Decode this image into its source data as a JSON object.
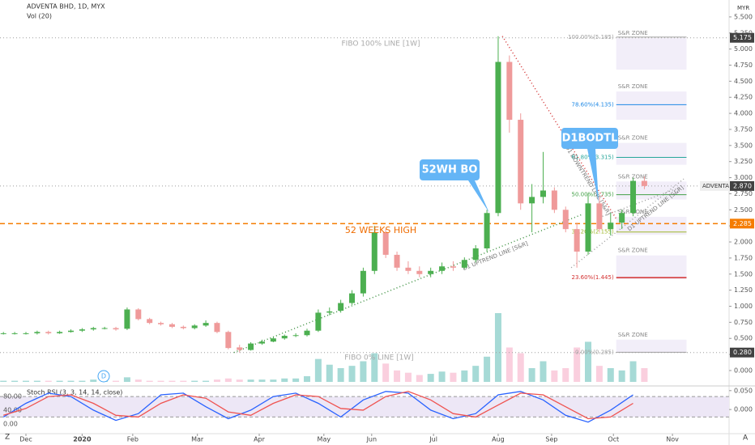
{
  "header": {
    "symbol": "ADVENTA BHD, 1D, MYX",
    "volume_label": "Vol (20)",
    "currency": "MYR"
  },
  "toolbar": {
    "left": "Z",
    "right": "A",
    "marker": "D"
  },
  "chart_data": [
    {
      "type": "candlestick",
      "xlim": [
        -9.22,
        250.14
      ],
      "ylim": [
        -0.227,
        5.763
      ],
      "xticks": [
        {
          "value": 0,
          "label": "Dec"
        },
        {
          "value": 20,
          "label": "2020"
        },
        {
          "value": 38,
          "label": "Feb"
        },
        {
          "value": 61,
          "label": "Mar"
        },
        {
          "value": 83,
          "label": "Apr"
        },
        {
          "value": 106,
          "label": "May"
        },
        {
          "value": 123,
          "label": "Jun"
        },
        {
          "value": 145,
          "label": "Jul"
        },
        {
          "value": 168,
          "label": "Aug"
        },
        {
          "value": 187,
          "label": "Sep"
        },
        {
          "value": 209,
          "label": "Oct"
        },
        {
          "value": 230,
          "label": "Nov"
        }
      ],
      "yticks": [
        {
          "value": 5.5,
          "label": "5.500"
        },
        {
          "value": 5.25,
          "label": "5.250"
        },
        {
          "value": 5.0,
          "label": "5.000"
        },
        {
          "value": 4.75,
          "label": "4.750"
        },
        {
          "value": 4.5,
          "label": "4.500"
        },
        {
          "value": 4.25,
          "label": "4.250"
        },
        {
          "value": 4.0,
          "label": "4.000"
        },
        {
          "value": 3.75,
          "label": "3.750"
        },
        {
          "value": 3.5,
          "label": "3.500"
        },
        {
          "value": 3.25,
          "label": "3.250"
        },
        {
          "value": 3.0,
          "label": "3.000"
        },
        {
          "value": 2.75,
          "label": "2.750"
        },
        {
          "value": 2.5,
          "label": "2.500"
        },
        {
          "value": 2.25,
          "label": "2.250"
        },
        {
          "value": 2.0,
          "label": "2.000"
        },
        {
          "value": 1.75,
          "label": "1.750"
        },
        {
          "value": 1.5,
          "label": "1.500"
        },
        {
          "value": 1.25,
          "label": "1.250"
        },
        {
          "value": 1.0,
          "label": "1.000"
        },
        {
          "value": 0.75,
          "label": "0.750"
        },
        {
          "value": 0.5,
          "label": "0.500"
        },
        {
          "value": 0.25,
          "label": "0.250"
        },
        {
          "value": 0,
          "label": "0.000"
        }
      ],
      "up_color": "#4caf50",
      "down_color": "#ef9a9a",
      "x": [
        -8,
        -4,
        0,
        4,
        8,
        12,
        16,
        20,
        24,
        28,
        32,
        36,
        40,
        44,
        48,
        52,
        56,
        60,
        64,
        68,
        72,
        76,
        80,
        84,
        88,
        92,
        96,
        100,
        104,
        108,
        112,
        116,
        120,
        124,
        128,
        132,
        136,
        140,
        144,
        148,
        152,
        156,
        160,
        164,
        168,
        172,
        176,
        180,
        184,
        188,
        192,
        196,
        200,
        204,
        208,
        212,
        216,
        220
      ],
      "open": [
        0.58,
        0.58,
        0.58,
        0.58,
        0.6,
        0.58,
        0.6,
        0.62,
        0.64,
        0.66,
        0.66,
        0.65,
        0.95,
        0.8,
        0.74,
        0.72,
        0.68,
        0.66,
        0.7,
        0.74,
        0.6,
        0.36,
        0.32,
        0.42,
        0.45,
        0.5,
        0.54,
        0.55,
        0.62,
        0.9,
        0.93,
        1.05,
        1.2,
        1.55,
        2.15,
        1.8,
        1.6,
        1.55,
        1.5,
        1.55,
        1.62,
        1.6,
        1.72,
        1.9,
        2.45,
        4.8,
        3.9,
        2.6,
        2.7,
        2.8,
        2.5,
        2.2,
        1.85,
        2.6,
        2.2,
        2.3,
        2.45,
        2.95
      ],
      "high": [
        0.6,
        0.6,
        0.6,
        0.62,
        0.62,
        0.62,
        0.64,
        0.66,
        0.68,
        0.68,
        0.68,
        0.98,
        0.97,
        0.82,
        0.76,
        0.74,
        0.7,
        0.72,
        0.78,
        0.76,
        0.62,
        0.4,
        0.44,
        0.48,
        0.52,
        0.56,
        0.58,
        0.65,
        0.95,
        0.98,
        1.1,
        1.25,
        1.6,
        2.25,
        2.2,
        1.85,
        1.7,
        1.62,
        1.6,
        1.68,
        1.7,
        1.76,
        1.95,
        2.5,
        5.2,
        4.9,
        4.0,
        2.9,
        3.4,
        2.85,
        2.55,
        2.3,
        2.75,
        2.7,
        2.45,
        2.5,
        3.0,
        3.02
      ],
      "low": [
        0.56,
        0.56,
        0.56,
        0.56,
        0.56,
        0.57,
        0.59,
        0.6,
        0.62,
        0.64,
        0.62,
        0.63,
        0.78,
        0.72,
        0.7,
        0.66,
        0.64,
        0.64,
        0.68,
        0.58,
        0.33,
        0.28,
        0.31,
        0.4,
        0.44,
        0.48,
        0.52,
        0.53,
        0.6,
        0.86,
        0.9,
        1.02,
        1.15,
        1.5,
        1.75,
        1.55,
        1.5,
        1.45,
        1.45,
        1.5,
        1.55,
        1.58,
        1.68,
        1.85,
        2.4,
        3.7,
        2.5,
        2.15,
        2.6,
        2.45,
        2.15,
        1.6,
        1.8,
        2.15,
        2.1,
        2.2,
        2.4,
        2.82
      ],
      "close": [
        0.58,
        0.58,
        0.58,
        0.6,
        0.58,
        0.6,
        0.62,
        0.64,
        0.66,
        0.66,
        0.64,
        0.95,
        0.8,
        0.74,
        0.72,
        0.68,
        0.66,
        0.7,
        0.74,
        0.6,
        0.35,
        0.32,
        0.42,
        0.45,
        0.5,
        0.54,
        0.55,
        0.62,
        0.9,
        0.92,
        1.05,
        1.2,
        1.55,
        2.15,
        1.8,
        1.6,
        1.55,
        1.5,
        1.55,
        1.62,
        1.6,
        1.72,
        1.9,
        2.45,
        4.8,
        3.9,
        2.6,
        2.7,
        2.8,
        2.5,
        2.2,
        1.85,
        2.6,
        2.2,
        2.3,
        2.45,
        2.95,
        2.87
      ],
      "volume": [
        1,
        1,
        1,
        1,
        1,
        1,
        1,
        1,
        2,
        1,
        1,
        4,
        2,
        1,
        1,
        1,
        1,
        1,
        1,
        2,
        3,
        2,
        2,
        2,
        2,
        3,
        3,
        5,
        20,
        15,
        12,
        14,
        18,
        25,
        16,
        10,
        8,
        6,
        7,
        9,
        8,
        10,
        14,
        22,
        60,
        30,
        25,
        12,
        18,
        10,
        12,
        30,
        35,
        14,
        12,
        10,
        18,
        12
      ],
      "price_labels": [
        {
          "value": 5.175,
          "label": "5.175",
          "color": "#424242",
          "line_color": "#9e9e9e",
          "line_style": "dotted"
        },
        {
          "value": 2.87,
          "label": "2.870",
          "name": "ADVENTA",
          "color": "#424242",
          "line_color": "#9e9e9e",
          "line_style": "dotted"
        },
        {
          "value": 2.285,
          "label": "2.285",
          "color": "#f57c00",
          "line_color": "#f57c00",
          "line_style": "dashed"
        },
        {
          "value": 0.28,
          "label": "0.280",
          "color": "#424242",
          "line_color": "#9e9e9e",
          "line_style": "dotted"
        }
      ],
      "fib_x": [
        210,
        235
      ],
      "fib_levels": [
        {
          "value": 5.185,
          "label": "100.00%(5.185)",
          "color": "#9e9e9e"
        },
        {
          "value": 4.135,
          "label": "78.60%(4.135)",
          "color": "#1e88e5"
        },
        {
          "value": 3.315,
          "label": "61.80%(3.315)",
          "color": "#26a69a"
        },
        {
          "value": 2.735,
          "label": "50.00%(2.735)",
          "color": "#43a047"
        },
        {
          "value": 2.155,
          "label": "38.20%(2.155)",
          "color": "#9fb72b"
        },
        {
          "value": 1.445,
          "label": "23.60%(1.445)",
          "color": "#d32f2f"
        },
        {
          "value": 0.285,
          "label": "0.00%(0.285)",
          "color": "#9e9e9e"
        }
      ],
      "sr_zones": [
        {
          "label": "S&R ZONE",
          "from": 4.68,
          "to": 5.17
        },
        {
          "label": "S&R ZONE",
          "from": 3.9,
          "to": 4.34
        },
        {
          "label": "S&R ZONE",
          "from": 3.2,
          "to": 3.54
        },
        {
          "label": "S&R ZONE",
          "from": 2.66,
          "to": 2.94
        },
        {
          "label": "S&R ZONE",
          "from": 2.11,
          "to": 2.39
        },
        {
          "label": "S&R ZONE",
          "from": 1.42,
          "to": 1.79
        },
        {
          "label": "S&R ZONE",
          "from": 0.28,
          "to": 0.48
        }
      ],
      "trendlines": [
        {
          "name": "D1 DOWNTREND LINE [S&R]",
          "color": "#d32f2f",
          "points": [
            [
              169.5,
              5.2
            ],
            [
              210,
              2.36
            ]
          ]
        },
        {
          "name": "D1 UPTREND LINE [S&R]",
          "color": "#388e3c",
          "points": [
            [
              74,
              0.28
            ],
            [
              198,
              2.43
            ]
          ]
        },
        {
          "name": "D1 UPTREND LINE [S&R]",
          "color": "#9e9e9e",
          "points": [
            [
              194,
              1.6
            ],
            [
              234,
              2.98
            ]
          ]
        },
        {
          "color": "#9e9e9e",
          "points": [
            [
              204,
              2.38
            ],
            [
              234,
              2.87
            ]
          ]
        }
      ],
      "annotations": {
        "fibo_100": "FIBO 100% LINE [1W]",
        "fibo_0": "FIBO 0% LINE [1W]",
        "weeks_high": "52 WEEKS HIGH",
        "callout_1": "52WH BO",
        "callout_2": "D1BODTL"
      }
    },
    {
      "type": "line",
      "title": "Stoch RSI (3, 3, 14, 14, close)",
      "xlim": [
        -9.22,
        250.14
      ],
      "ylim": [
        -29,
        104
      ],
      "band": [
        20,
        80
      ],
      "band_color": "#ede7f6",
      "yticks": [
        {
          "value": 80,
          "label": "80.00"
        },
        {
          "value": 40,
          "label": "40.00"
        },
        {
          "value": 0,
          "label": "0.00"
        }
      ],
      "y2lim": [
        -0.064,
        0.056
      ],
      "y2ticks": [
        {
          "value": 0.05,
          "label": "0.050"
        },
        {
          "value": 0,
          "label": "0.000"
        }
      ],
      "x": [
        -8,
        0,
        8,
        16,
        24,
        32,
        40,
        48,
        56,
        64,
        72,
        80,
        88,
        96,
        104,
        112,
        120,
        128,
        136,
        144,
        152,
        160,
        168,
        176,
        184,
        192,
        200,
        208,
        216
      ],
      "series": [
        {
          "color": "#2962ff",
          "values": [
            20,
            60,
            90,
            80,
            40,
            10,
            30,
            85,
            90,
            50,
            15,
            40,
            80,
            90,
            60,
            20,
            70,
            95,
            90,
            40,
            15,
            30,
            85,
            95,
            70,
            25,
            5,
            40,
            85
          ]
        },
        {
          "color": "#ef5350",
          "values": [
            25,
            45,
            80,
            85,
            60,
            25,
            20,
            60,
            85,
            75,
            35,
            25,
            60,
            85,
            80,
            45,
            40,
            80,
            95,
            70,
            30,
            20,
            55,
            90,
            85,
            50,
            15,
            20,
            60
          ]
        }
      ]
    }
  ]
}
